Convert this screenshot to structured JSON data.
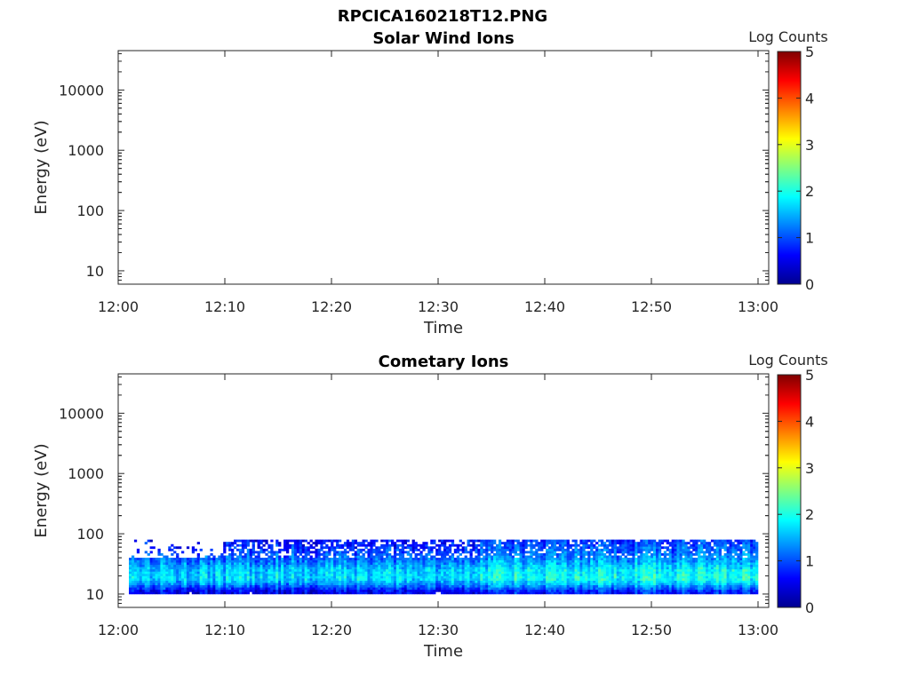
{
  "figure_title": "RPCICA160218T12.PNG",
  "colors": {
    "colormap": [
      "#00008f",
      "#0000ff",
      "#0080ff",
      "#00ffff",
      "#80ff80",
      "#ffff00",
      "#ff8000",
      "#ff0000",
      "#800000"
    ],
    "axis": "#262626"
  },
  "chart_data": [
    {
      "type": "heatmap",
      "title": "Solar Wind Ions",
      "xlabel": "Time",
      "ylabel": "Energy (eV)",
      "y_scale": "log",
      "xlim": [
        "12:00",
        "13:01"
      ],
      "ylim": [
        6,
        45000
      ],
      "x_ticks": [
        "12:00",
        "12:10",
        "12:20",
        "12:30",
        "12:40",
        "12:50",
        "13:00"
      ],
      "y_ticks": [
        {
          "value": 10,
          "label": "10"
        },
        {
          "value": 100,
          "label": "100"
        },
        {
          "value": 1000,
          "label": "1000"
        },
        {
          "value": 10000,
          "label": "10000"
        }
      ],
      "colorbar": {
        "label": "Log Counts",
        "range": [
          0,
          5
        ],
        "ticks": [
          "0",
          "1",
          "2",
          "3",
          "4",
          "5"
        ]
      },
      "data": "empty"
    },
    {
      "type": "heatmap",
      "title": "Cometary Ions",
      "xlabel": "Time",
      "ylabel": "Energy (eV)",
      "y_scale": "log",
      "xlim": [
        "12:00",
        "13:01"
      ],
      "ylim": [
        6,
        45000
      ],
      "x_ticks": [
        "12:00",
        "12:10",
        "12:20",
        "12:30",
        "12:40",
        "12:50",
        "13:00"
      ],
      "y_ticks": [
        {
          "value": 10,
          "label": "10"
        },
        {
          "value": 100,
          "label": "100"
        },
        {
          "value": 1000,
          "label": "1000"
        },
        {
          "value": 10000,
          "label": "10000"
        }
      ],
      "colorbar": {
        "label": "Log Counts",
        "range": [
          0,
          5
        ],
        "ticks": [
          "0",
          "1",
          "2",
          "3",
          "4",
          "5"
        ]
      },
      "data_extent": {
        "time": [
          "12:01",
          "13:00"
        ],
        "energy": [
          10,
          80
        ]
      },
      "band_profile": [
        {
          "energy": 80,
          "log_counts": 0.6
        },
        {
          "energy": 50,
          "log_counts": 0.9
        },
        {
          "energy": 35,
          "log_counts": 1.2
        },
        {
          "energy": 25,
          "log_counts": 1.6
        },
        {
          "energy": 18,
          "log_counts": 1.7
        },
        {
          "energy": 14,
          "log_counts": 1.2
        },
        {
          "energy": 11,
          "log_counts": 0.5
        }
      ]
    }
  ]
}
